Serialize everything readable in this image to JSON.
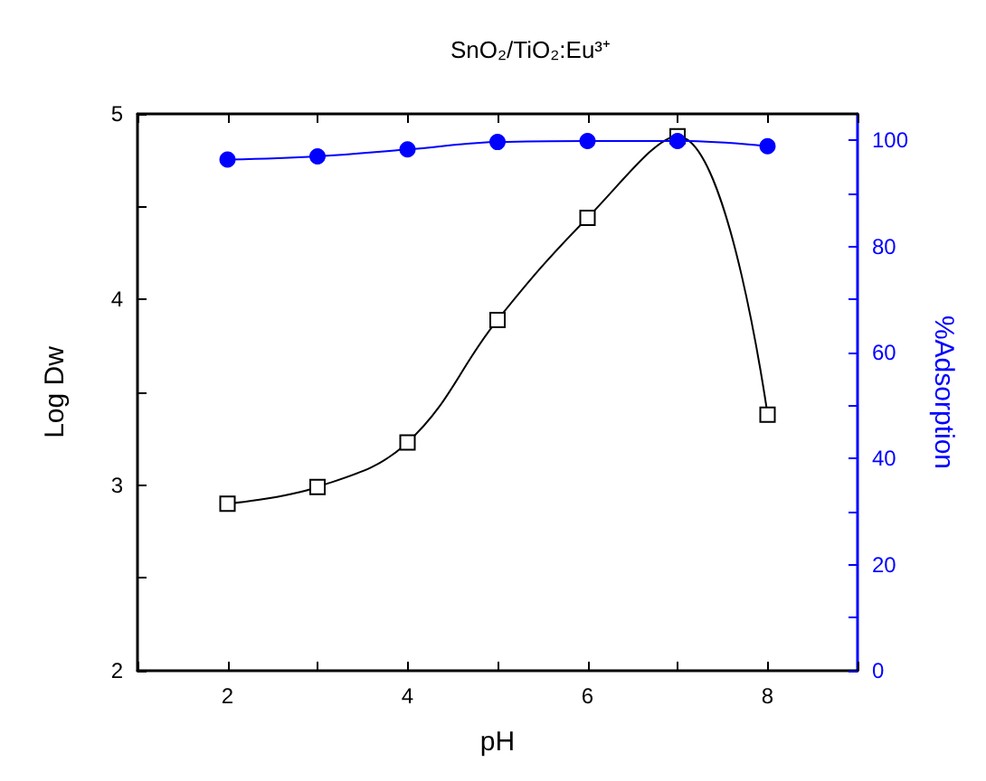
{
  "chart_data": {
    "type": "line",
    "title": "SnO₂/TiO₂:Eu³⁺",
    "xlabel": "pH",
    "ylabel": "Log Dw",
    "y2label": "%Adsorption",
    "x": [
      2,
      3,
      4,
      5,
      6,
      7,
      8
    ],
    "xlim": [
      1,
      9
    ],
    "xticks": [
      {
        "value": 1,
        "label": null
      },
      2,
      {
        "value": 3,
        "label": null
      },
      4,
      {
        "value": 5,
        "label": null
      },
      6,
      {
        "value": 7,
        "label": null
      },
      8,
      {
        "value": 9,
        "label": null
      }
    ],
    "ylim": [
      2,
      5
    ],
    "yticks": [
      2,
      {
        "value": 2.5,
        "label": null
      },
      3,
      {
        "value": 3.5,
        "label": null
      },
      4,
      {
        "value": 4.5,
        "label": null
      },
      5
    ],
    "y2lim": [
      0,
      105
    ],
    "y2ticks": [
      0,
      {
        "value": 10,
        "label": null
      },
      20,
      {
        "value": 30,
        "label": null
      },
      40,
      {
        "value": 50,
        "label": null
      },
      60,
      {
        "value": 70,
        "label": null
      },
      80,
      {
        "value": 90,
        "label": null
      },
      100
    ],
    "series": [
      {
        "color": "#000000",
        "marker": "square",
        "values": [
          2.9,
          2.99,
          3.23,
          3.89,
          4.44,
          4.88,
          3.38
        ]
      },
      {
        "color": "#0000ff",
        "marker": "circle",
        "axis": "y2",
        "values": [
          96.4,
          97.0,
          98.3,
          99.7,
          99.9,
          99.9,
          98.9
        ]
      }
    ]
  }
}
